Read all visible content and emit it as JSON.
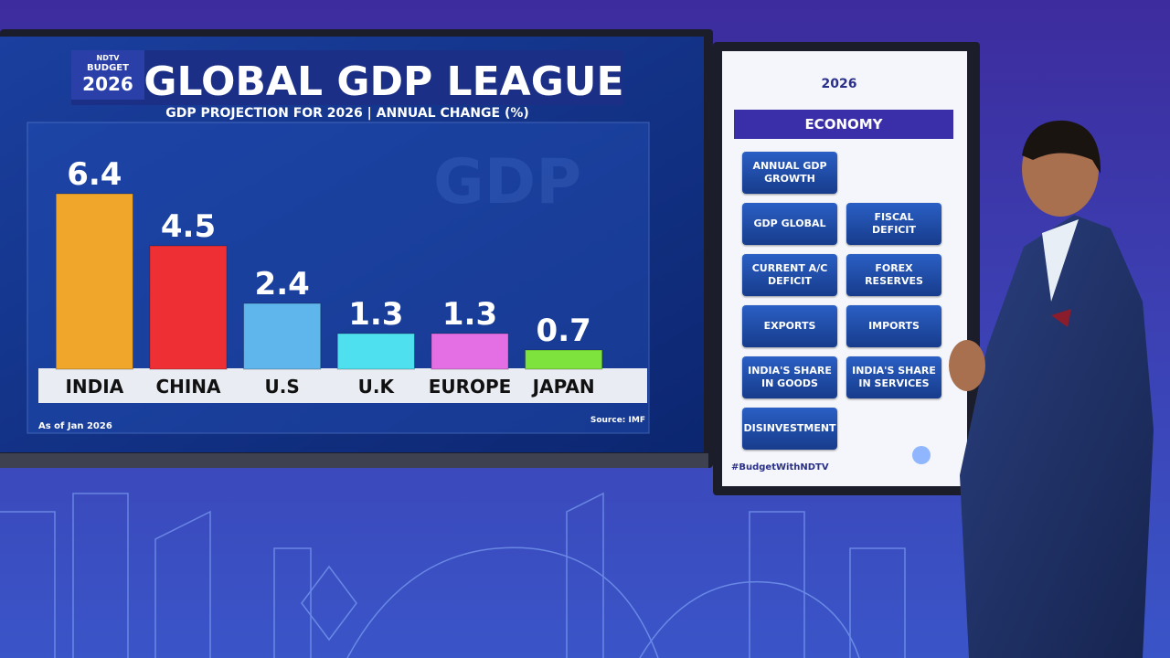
{
  "chart_data": {
    "type": "bar",
    "title": "GLOBAL GDP LEAGUE",
    "subtitle": "GDP PROJECTION FOR 2026 | ANNUAL CHANGE (%)",
    "categories": [
      "INDIA",
      "CHINA",
      "U.S",
      "U.K",
      "EUROPE",
      "JAPAN"
    ],
    "values": [
      6.4,
      4.5,
      2.4,
      1.3,
      1.3,
      0.7
    ],
    "colors": [
      "#f0a62a",
      "#ee3035",
      "#5fb6ec",
      "#4ee0ee",
      "#e46fe4",
      "#7ee33c"
    ],
    "note": "As of Jan 2026",
    "source": "Source: IMF"
  },
  "logo": {
    "brand": "NDTV",
    "event": "BUDGET",
    "year": "2026"
  },
  "panel": {
    "heading": "ECONOMY",
    "buttons": [
      "ANNUAL GDP GROWTH",
      "GDP GLOBAL",
      "FISCAL DEFICIT",
      "CURRENT A/C DEFICIT",
      "FOREX RESERVES",
      "EXPORTS",
      "IMPORTS",
      "INDIA'S SHARE IN GOODS",
      "INDIA'S SHARE IN SERVICES",
      "DISINVESTMENT"
    ],
    "hashtag": "#BudgetWithNDTV"
  }
}
